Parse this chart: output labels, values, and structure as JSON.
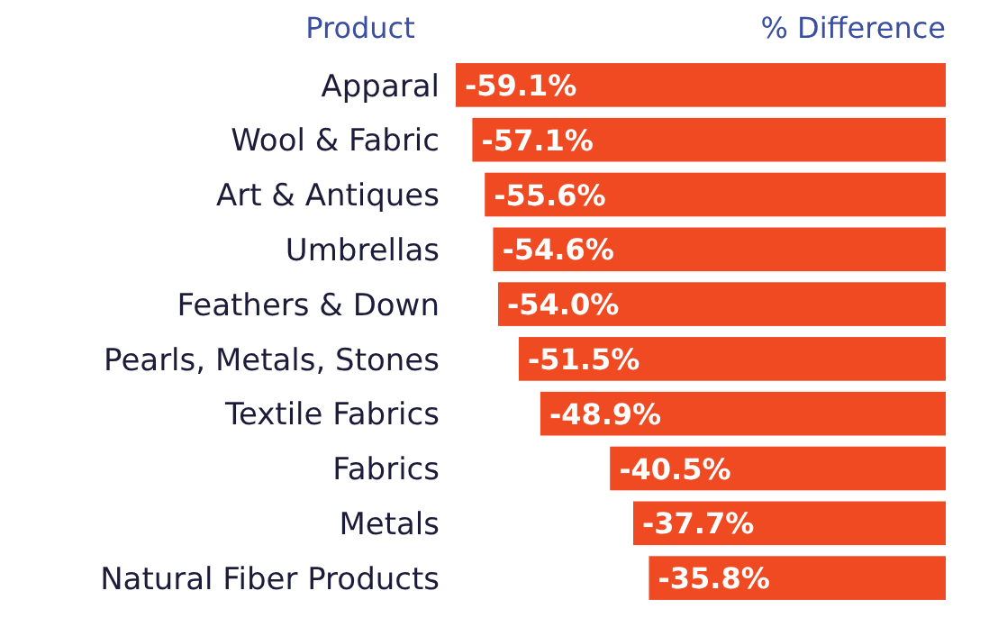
{
  "chart_data": {
    "type": "bar",
    "orientation": "horizontal",
    "ylabel": "Product",
    "xlabel": "% Difference",
    "categories": [
      "Apparal",
      "Wool & Fabric",
      "Art & Antiques",
      "Umbrellas",
      "Feathers & Down",
      "Pearls, Metals, Stones",
      "Textile Fabrics",
      "Fabrics",
      "Metals",
      "Natural Fiber Products"
    ],
    "values": [
      -59.1,
      -57.1,
      -55.6,
      -54.6,
      -54.0,
      -51.5,
      -48.9,
      -40.5,
      -37.7,
      -35.8
    ],
    "value_labels": [
      "-59.1%",
      "-57.1%",
      "-55.6%",
      "-54.6%",
      "-54.0%",
      "-51.5%",
      "-48.9%",
      "-40.5%",
      "-37.7%",
      "-35.8%"
    ],
    "color": "#f04a23"
  }
}
